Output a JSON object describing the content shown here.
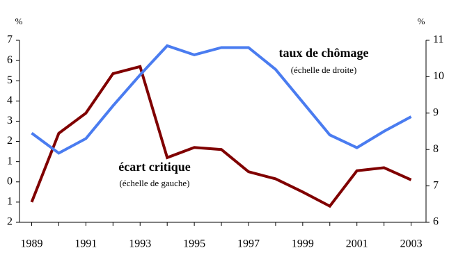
{
  "chart_data": {
    "type": "line",
    "y_unit": "%",
    "y2_unit": "%",
    "x": [
      1989,
      1990,
      1991,
      1992,
      1993,
      1994,
      1995,
      1996,
      1997,
      1998,
      1999,
      2000,
      2001,
      2002,
      2003
    ],
    "xlim": [
      1988.55,
      2003.55
    ],
    "xticks": [
      1989,
      1991,
      1993,
      1995,
      1997,
      1999,
      2001,
      2003
    ],
    "ylim": [
      -2,
      7
    ],
    "yticks": [
      7,
      6,
      5,
      4,
      3,
      2,
      1,
      0,
      {
        "value": -1,
        "label": "1"
      },
      {
        "value": -2,
        "label": "2"
      }
    ],
    "y2lim": [
      6,
      11
    ],
    "y2ticks": [
      11,
      10,
      9,
      8,
      7,
      6
    ],
    "series": [
      {
        "name": "écart critique",
        "note": "(échelle de gauche)",
        "color": "#800000",
        "values": [
          -1.0,
          2.4,
          3.4,
          5.35,
          5.7,
          1.2,
          1.7,
          1.6,
          0.5,
          0.15,
          -0.5,
          -1.2,
          0.55,
          0.7,
          0.1
        ]
      },
      {
        "name": "taux de chômage",
        "note": "(échelle de droite)",
        "color": "#4a7cf0",
        "axis": "y2",
        "values": [
          8.45,
          7.9,
          8.3,
          9.2,
          10.05,
          10.85,
          10.6,
          10.8,
          10.8,
          10.2,
          9.3,
          8.4,
          8.05,
          8.5,
          8.9
        ]
      }
    ]
  }
}
